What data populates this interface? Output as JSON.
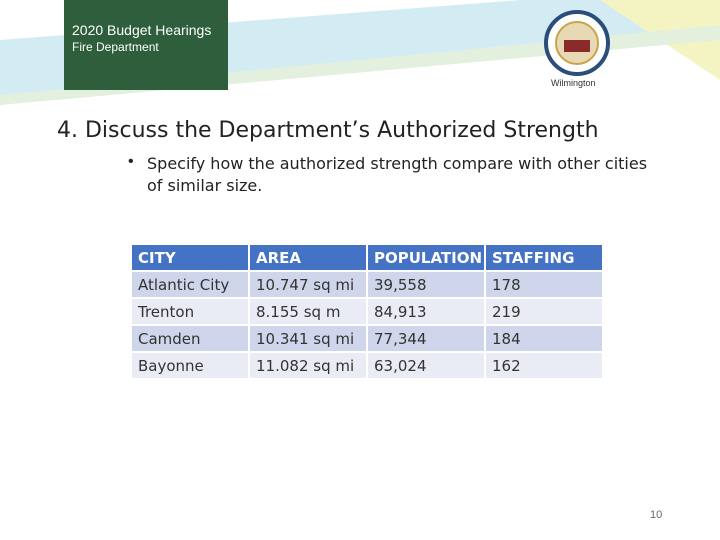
{
  "header": {
    "title": "2020 Budget Hearings",
    "subtitle": "Fire Department",
    "logo_caption": "Wilmington"
  },
  "heading": "4.  Discuss the Department’s Authorized Strength",
  "bullet": "Specify how the authorized strength compare with other cities of similar size.",
  "table": {
    "columns": [
      "CITY",
      "AREA",
      "POPULATION",
      "STAFFING"
    ],
    "rows": [
      [
        "Atlantic City",
        "10.747 sq mi",
        "39,558",
        "178"
      ],
      [
        "Trenton",
        "8.155 sq m",
        "84,913",
        "219"
      ],
      [
        "Camden",
        "10.341 sq mi",
        "77,344",
        "184"
      ],
      [
        "Bayonne",
        "11.082 sq mi",
        "63,024",
        "162"
      ]
    ]
  },
  "page_number": "10"
}
